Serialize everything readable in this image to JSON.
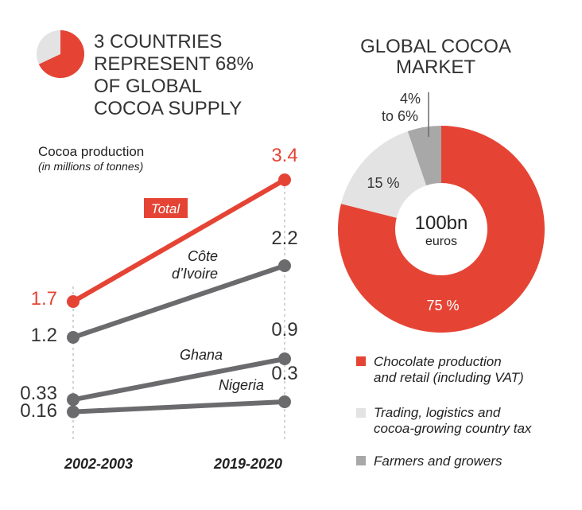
{
  "headline": {
    "lines": [
      "3 COUNTRIES",
      "REPRESENT 68%",
      "OF GLOBAL",
      "COCOA SUPPLY"
    ],
    "share_percent": 68
  },
  "colors": {
    "accent": "#e54435",
    "series_gray": "#6b6b6e",
    "light_gray": "#e3e3e3",
    "mid_gray": "#a8a8a8"
  },
  "chart_data": [
    {
      "type": "line",
      "title": "Cocoa production",
      "subtitle": "(in millions of tonnes)",
      "categories": [
        "2002-2003",
        "2019-2020"
      ],
      "series": [
        {
          "name": "Total",
          "values": [
            1.7,
            3.4
          ]
        },
        {
          "name": "Côte d’Ivoire",
          "values": [
            1.2,
            2.2
          ]
        },
        {
          "name": "Ghana",
          "values": [
            0.33,
            0.9
          ]
        },
        {
          "name": "Nigeria",
          "values": [
            0.16,
            0.3
          ]
        }
      ],
      "value_labels": {
        "start": [
          "1.7",
          "1.2",
          "0.33",
          "0.16"
        ],
        "end": [
          "3.4",
          "2.2",
          "0.9",
          "0.3"
        ]
      },
      "series_label_lines": {
        "cote": [
          "Côte",
          "d’Ivoire"
        ]
      }
    },
    {
      "type": "pie",
      "title": "GLOBAL COCOA MARKET",
      "title_lines": [
        "GLOBAL COCOA",
        "MARKET"
      ],
      "center_value": "100bn",
      "center_unit": "euros",
      "slices": [
        {
          "name": "Chocolate production and retail (including VAT)",
          "value": 75,
          "label": "75 %",
          "color": "#e54435"
        },
        {
          "name": "Trading, logistics and cocoa-growing country tax",
          "value": 15,
          "label": "15 %",
          "color": "#e3e3e3"
        },
        {
          "name": "Farmers and growers",
          "value": 5,
          "label_lines": [
            "4%",
            "to 6%"
          ],
          "color": "#a8a8a8"
        }
      ],
      "legend": [
        {
          "lines": [
            "Chocolate production",
            "and retail (including VAT)"
          ],
          "color": "#e54435"
        },
        {
          "lines": [
            "Trading, logistics and",
            "cocoa-growing country tax"
          ],
          "color": "#e3e3e3"
        },
        {
          "lines": [
            "Farmers and growers"
          ],
          "color": "#a8a8a8"
        }
      ]
    }
  ]
}
